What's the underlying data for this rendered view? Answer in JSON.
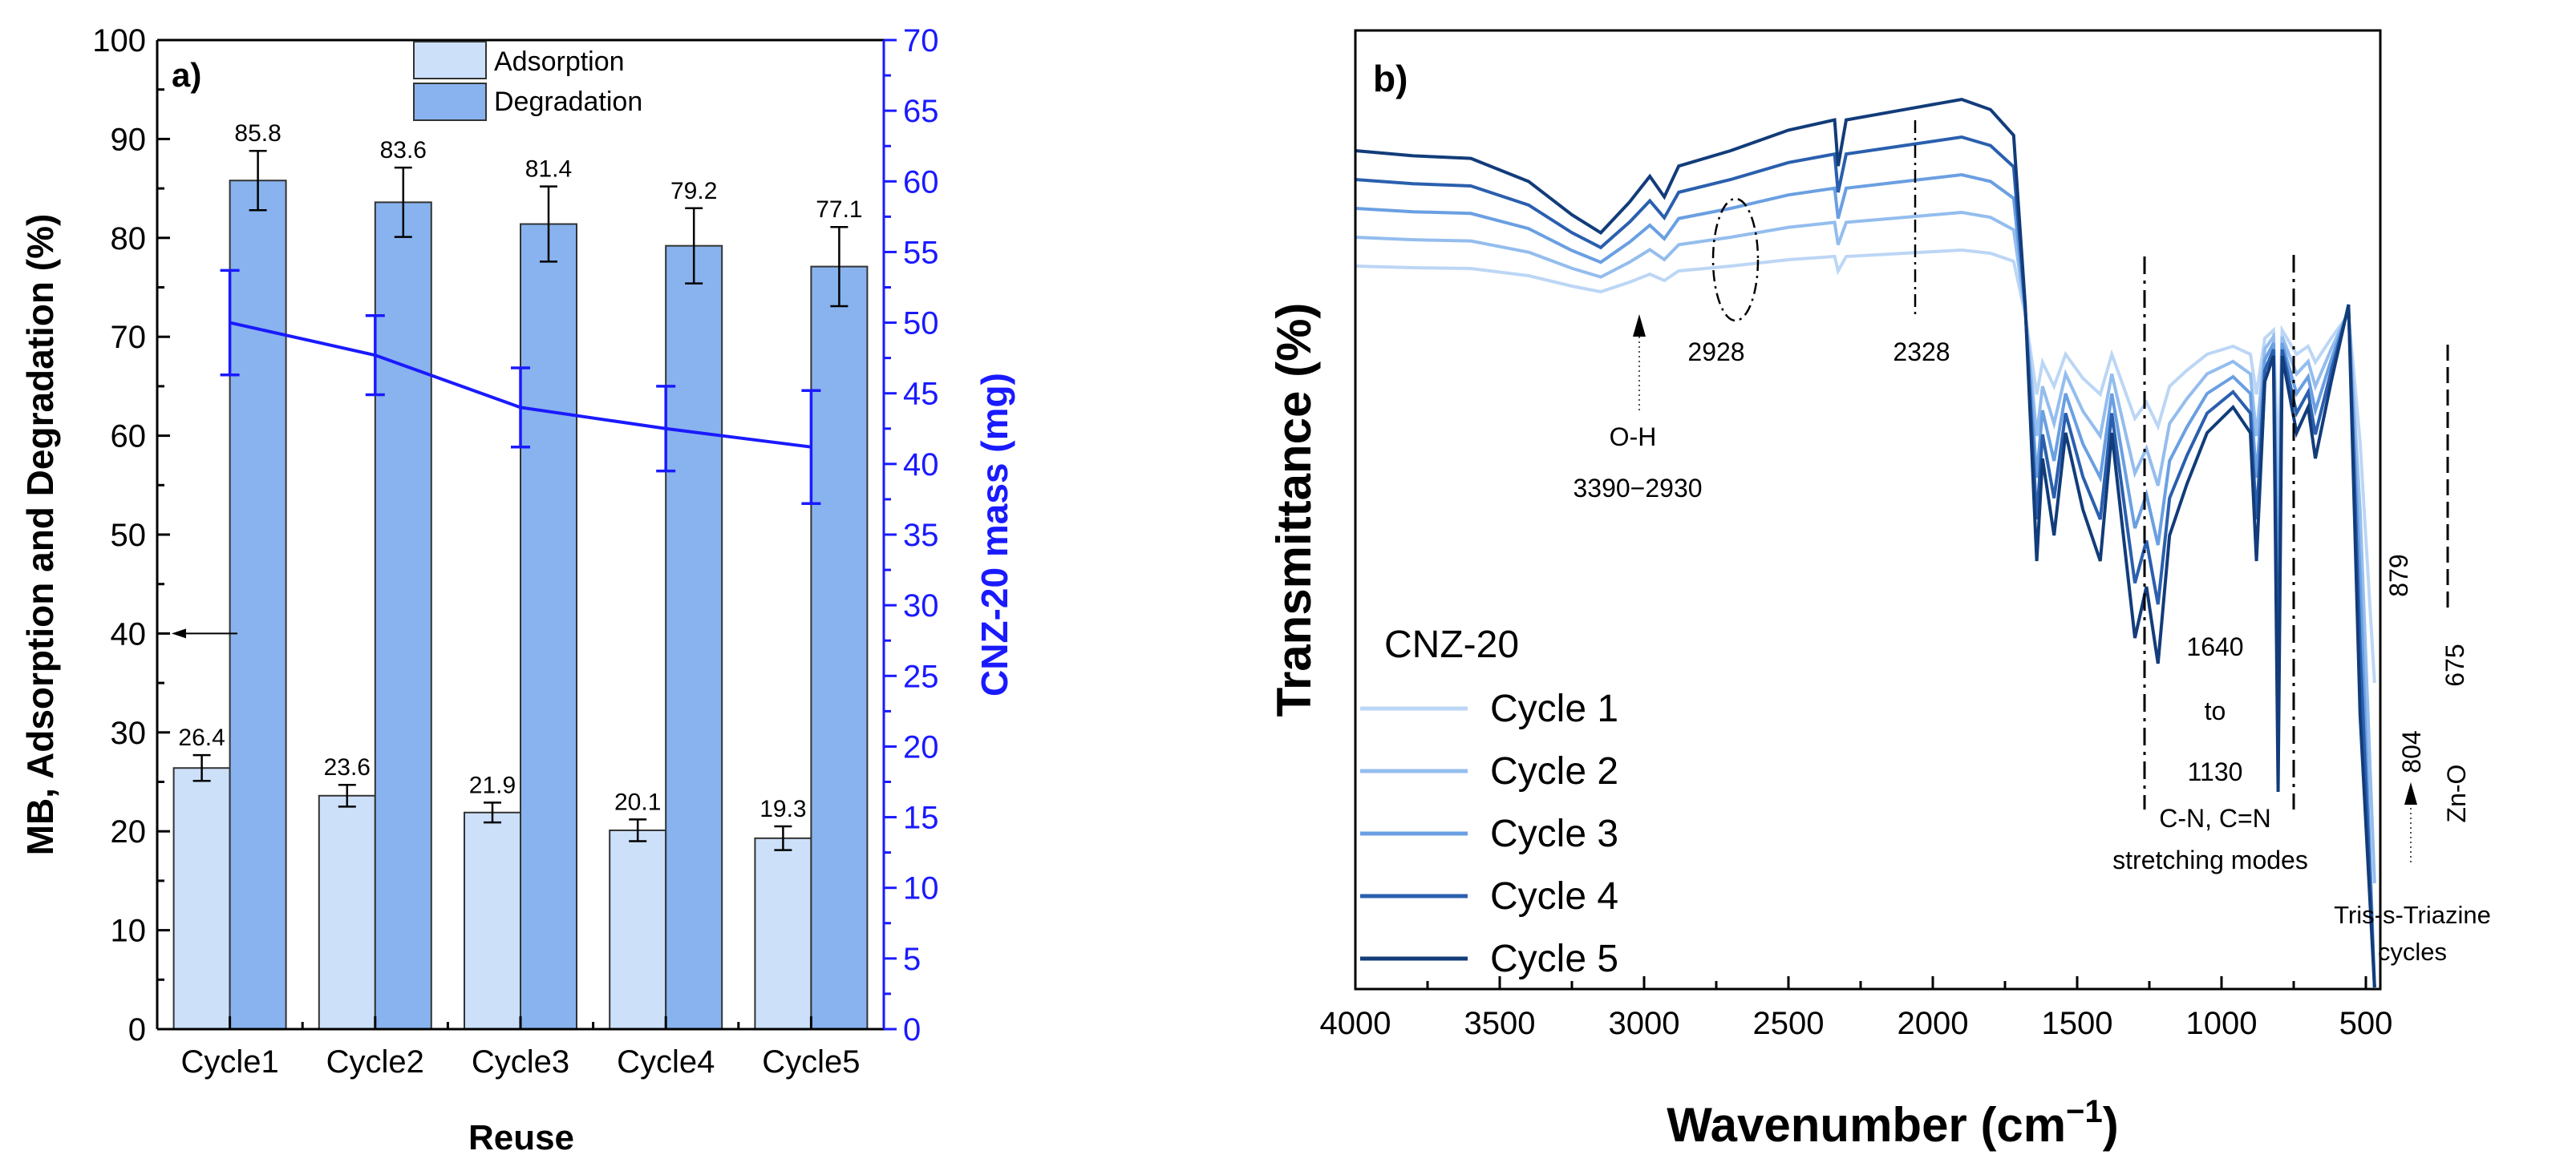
{
  "chart_data": [
    {
      "panel": "a)",
      "type": "bar",
      "categories": [
        "Cycle1",
        "Cycle2",
        "Cycle3",
        "Cycle4",
        "Cycle5"
      ],
      "series": [
        {
          "name": "Adsorption",
          "values": [
            26.4,
            23.6,
            21.9,
            20.1,
            19.3
          ],
          "errors": [
            1.3,
            1.1,
            1.0,
            1.1,
            1.2
          ],
          "labels": [
            "26.4",
            "23.6",
            "21.9",
            "20.1",
            "19.3"
          ],
          "color": "#cce0fa"
        },
        {
          "name": "Degradation",
          "values": [
            85.8,
            83.6,
            81.4,
            79.2,
            77.1
          ],
          "errors": [
            3.0,
            3.5,
            3.8,
            3.8,
            4.0
          ],
          "labels": [
            "85.8",
            "83.6",
            "81.4",
            "79.2",
            "77.1"
          ],
          "color": "#88b3ee"
        }
      ],
      "mass_series": {
        "name": "CNZ-20 mass",
        "values": [
          50.0,
          47.7,
          44.0,
          42.5,
          41.2
        ],
        "errors": [
          3.7,
          2.8,
          2.8,
          3.0,
          4.0
        ],
        "color": "#1a1aff"
      },
      "xlabel": "Reuse",
      "ylabel": "MB, Adsorption and Degradation (%)",
      "y2label": "CNZ-20 mass (mg)",
      "ylim": [
        0,
        100
      ],
      "y2lim": [
        0,
        70
      ],
      "yticks": [
        "0",
        "10",
        "20",
        "30",
        "40",
        "50",
        "60",
        "70",
        "80",
        "90",
        "100"
      ],
      "y2ticks": [
        "0",
        "5",
        "10",
        "15",
        "20",
        "25",
        "30",
        "35",
        "40",
        "45",
        "50",
        "55",
        "60",
        "65",
        "70"
      ],
      "legend": [
        "Adsorption",
        "Degradation"
      ],
      "legend_position": "top-center",
      "axis_arrow_at": 40
    },
    {
      "panel": "b)",
      "type": "line",
      "xlabel": "Wavenumber (cm",
      "xlabel_sup": "−1",
      "xlabel_end": ")",
      "ylabel": "Transmittance (%)",
      "xlim": [
        4000,
        450
      ],
      "xticks": [
        "4000",
        "3500",
        "3000",
        "2500",
        "2000",
        "1500",
        "1000",
        "500"
      ],
      "legend_title": "CNZ-20",
      "series": [
        {
          "name": "Cycle 1",
          "color": "#bcd6f5",
          "offset": 0
        },
        {
          "name": "Cycle 2",
          "color": "#94bdee",
          "offset": 1
        },
        {
          "name": "Cycle 3",
          "color": "#6a9fe2",
          "offset": 2
        },
        {
          "name": "Cycle 4",
          "color": "#2a5fae",
          "offset": 3
        },
        {
          "name": "Cycle 5",
          "color": "#123c7a",
          "offset": 4
        }
      ],
      "annotations": {
        "oh_label": "O-H",
        "oh_range": "3390−2930",
        "peak_2928": "2928",
        "peak_2328": "2328",
        "range_start": "1640",
        "range_to": "to",
        "range_end": "1130",
        "cn_modes": "C-N, C=N",
        "stretching": "stretching modes",
        "peak_879": "879",
        "peak_804": "804",
        "peak_675": "675",
        "zno": "Zn-O",
        "triazine": "Tris-s-Triazine",
        "cycles": "cycles"
      }
    }
  ]
}
